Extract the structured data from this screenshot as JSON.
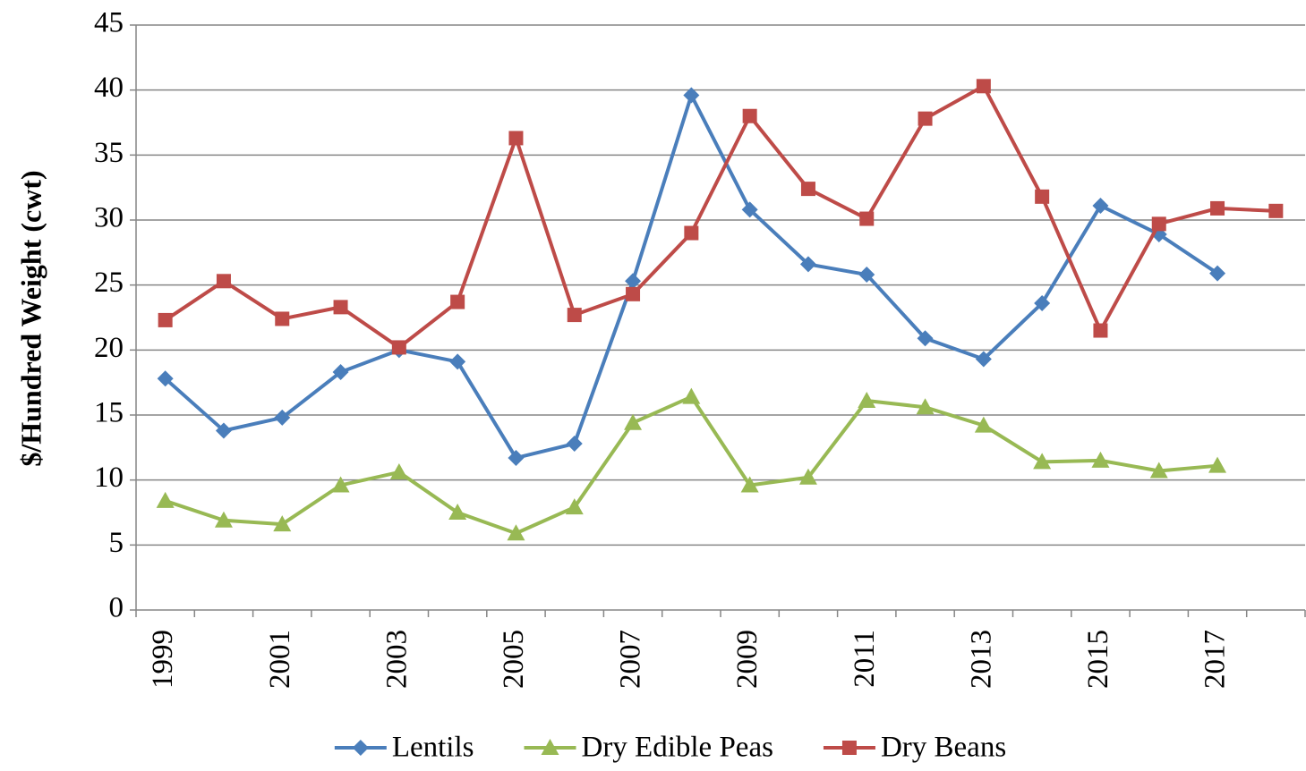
{
  "chart_data": {
    "type": "line",
    "ylabel": "$/Hundred Weight (cwt)",
    "categories": [
      "1999",
      null,
      "2001",
      null,
      "2003",
      null,
      "2005",
      null,
      "2007",
      null,
      "2009",
      null,
      "2011",
      null,
      "2013",
      null,
      "2015",
      null,
      "2017",
      null
    ],
    "series": [
      {
        "name": "Lentils",
        "color": "#4a7ebb",
        "marker": "diamond",
        "values": [
          17.8,
          13.8,
          14.8,
          18.3,
          20.0,
          19.1,
          11.7,
          12.8,
          25.3,
          39.6,
          30.8,
          26.6,
          25.8,
          20.9,
          19.3,
          23.6,
          31.1,
          28.9,
          25.9,
          null
        ]
      },
      {
        "name": "Dry Edible Peas",
        "color": "#98b954",
        "marker": "triangle",
        "values": [
          8.4,
          6.9,
          6.6,
          9.6,
          10.6,
          7.5,
          5.9,
          7.9,
          14.4,
          16.4,
          9.6,
          10.2,
          16.1,
          15.6,
          14.2,
          11.4,
          11.5,
          10.7,
          11.1,
          null
        ]
      },
      {
        "name": "Dry Beans",
        "color": "#be4b48",
        "marker": "square",
        "values": [
          22.3,
          25.3,
          22.4,
          23.3,
          20.2,
          23.7,
          36.3,
          22.7,
          24.3,
          29.0,
          38.0,
          32.4,
          30.1,
          37.8,
          40.3,
          31.8,
          21.5,
          29.7,
          30.9,
          30.7
        ]
      }
    ],
    "ylim": [
      0,
      45
    ],
    "yticks": [
      0,
      5,
      10,
      15,
      20,
      25,
      30,
      35,
      40,
      45
    ],
    "grid": true,
    "legend": "bottom"
  }
}
